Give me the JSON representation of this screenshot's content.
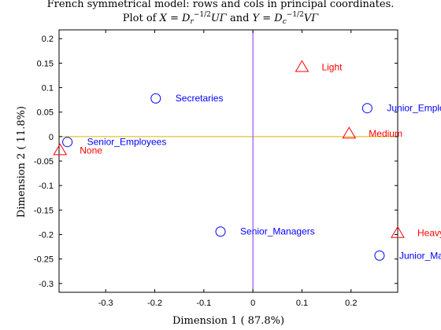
{
  "chart_data": {
    "type": "scatter",
    "title": {
      "line1": "French symmetrical model: rows and cols in principal coordinates.",
      "line2_prefix": "Plot of ",
      "line2_mid": " and ",
      "x_eq": {
        "lhs": "X",
        "mid": "D",
        "sub": "r",
        "sup": "−1/2",
        "rhs": "UΓ"
      },
      "y_eq": {
        "lhs": "Y",
        "mid": "D",
        "sub": "c",
        "sup": "−1/2",
        "rhs": "VΓ"
      }
    },
    "xlabel": "Dimension  1 ( 87.8%)",
    "ylabel": "Dimension  2 ( 11.8%)",
    "xlim": [
      -0.395,
      0.295
    ],
    "ylim": [
      -0.318,
      0.218
    ],
    "x_ticks": [
      -0.3,
      -0.2,
      -0.1,
      0,
      0.1,
      0.2
    ],
    "x_tick_labels": [
      "-0.3",
      "-0.2",
      "-0.1",
      "0",
      "0.1",
      "0.2"
    ],
    "y_ticks": [
      0.2,
      0.15,
      0.1,
      0.05,
      0,
      -0.05,
      -0.1,
      -0.15,
      -0.2,
      -0.25,
      -0.3
    ],
    "y_tick_labels": [
      "0.2",
      "0.15",
      "0.1",
      "0.05",
      "0",
      "-0.05",
      "-0.1",
      "-0.15",
      "-0.2",
      "-0.25",
      "-0.3"
    ],
    "grid": false,
    "series": [
      {
        "marker": "circle",
        "color": "#0000ff",
        "points": [
          {
            "label": "Secretaries",
            "x": -0.198,
            "y": 0.078
          },
          {
            "label": "Junior_Employees",
            "x": 0.233,
            "y": 0.058
          },
          {
            "label": "Senior_Employees",
            "x": -0.378,
            "y": -0.011
          },
          {
            "label": "Senior_Managers",
            "x": -0.066,
            "y": -0.194
          },
          {
            "label": "Junior_Managers",
            "x": 0.258,
            "y": -0.243
          }
        ]
      },
      {
        "marker": "triangle",
        "color": "#ff0000",
        "points": [
          {
            "label": "Light",
            "x": 0.1,
            "y": 0.142
          },
          {
            "label": "Medium",
            "x": 0.196,
            "y": 0.006
          },
          {
            "label": "None",
            "x": -0.393,
            "y": -0.028
          },
          {
            "label": "Heavy",
            "x": 0.295,
            "y": -0.197
          }
        ]
      }
    ],
    "reference_lines": {
      "horizontal_y0_color": "#e0b400",
      "vertical_x0_color": "#8a2be2"
    }
  }
}
